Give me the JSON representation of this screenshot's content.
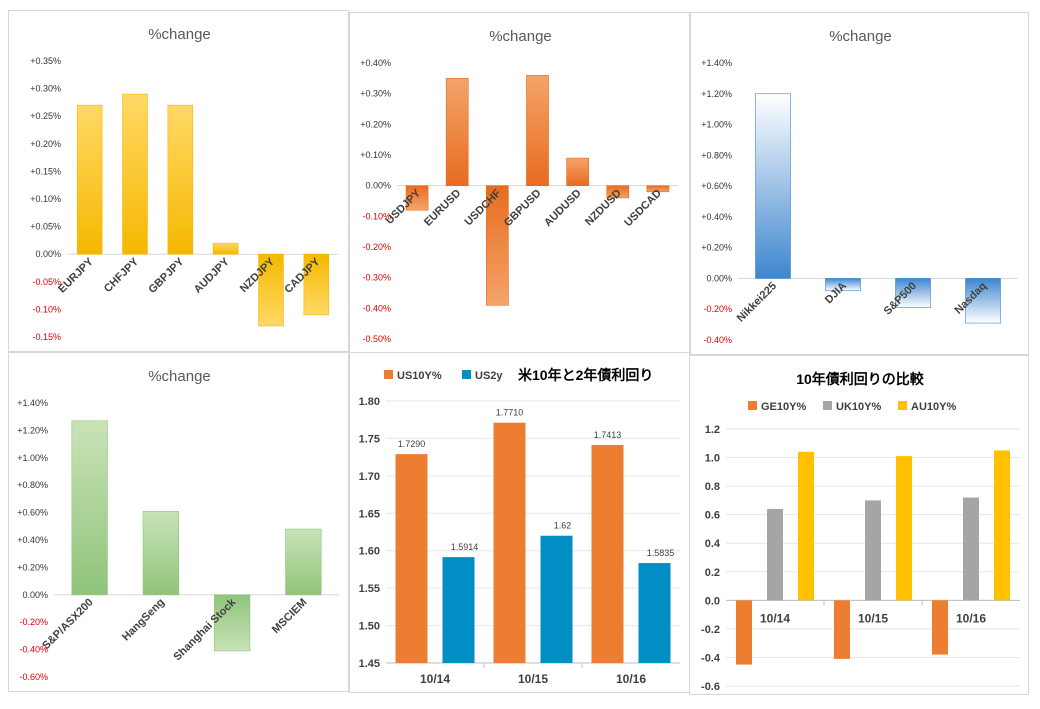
{
  "chart_data": [
    {
      "id": "p1",
      "type": "bar",
      "title": "%change",
      "categories": [
        "EURJPY",
        "CHFJPY",
        "GBPJPY",
        "AUDJPY",
        "NZDJPY",
        "CADJPY"
      ],
      "values": [
        0.27,
        0.29,
        0.27,
        0.02,
        -0.13,
        -0.11
      ],
      "ylim": [
        -0.15,
        0.35
      ],
      "yticks": [
        0.35,
        0.3,
        0.25,
        0.2,
        0.15,
        0.1,
        0.05,
        0.0,
        -0.05,
        -0.1,
        -0.15
      ],
      "ytick_labels": [
        "+0.35%",
        "+0.30%",
        "+0.25%",
        "+0.20%",
        "+0.15%",
        "+0.10%",
        "+0.05%",
        "0.00%",
        "-0.05%",
        "-0.10%",
        "-0.15%"
      ],
      "colors": {
        "bar_top": "#ffd966",
        "bar_bottom": "#f5b800",
        "negative_label": "#e00000",
        "label": "#333333"
      }
    },
    {
      "id": "p2",
      "type": "bar",
      "title": "%change",
      "categories": [
        "USDJPY",
        "EURUSD",
        "USDCHF",
        "GBPUSD",
        "AUDUSD",
        "NZDUSD",
        "USDCAD"
      ],
      "values": [
        -0.08,
        0.35,
        -0.39,
        0.36,
        0.09,
        -0.04,
        -0.02
      ],
      "ylim": [
        -0.5,
        0.4
      ],
      "yticks": [
        0.4,
        0.3,
        0.2,
        0.1,
        0.0,
        -0.1,
        -0.2,
        -0.3,
        -0.4,
        -0.5
      ],
      "ytick_labels": [
        "+0.40%",
        "+0.30%",
        "+0.20%",
        "+0.10%",
        "0.00%",
        "-0.10%",
        "-0.20%",
        "-0.30%",
        "-0.40%",
        "-0.50%"
      ],
      "colors": {
        "bar_top": "#f4a46a",
        "bar_bottom": "#e76c1f",
        "negative_label": "#e00000",
        "label": "#333333"
      }
    },
    {
      "id": "p3",
      "type": "bar",
      "title": "%change",
      "categories": [
        "Nikkei225",
        "DJIA",
        "S&P500",
        "Nasdaq"
      ],
      "values": [
        1.2,
        -0.08,
        -0.19,
        -0.29
      ],
      "ylim": [
        -0.4,
        1.4
      ],
      "yticks": [
        1.4,
        1.2,
        1.0,
        0.8,
        0.6,
        0.4,
        0.2,
        0.0,
        -0.2,
        -0.4
      ],
      "ytick_labels": [
        "+1.40%",
        "+1.20%",
        "+1.00%",
        "+0.80%",
        "+0.60%",
        "+0.40%",
        "+0.20%",
        "0.00%",
        "-0.20%",
        "-0.40%"
      ],
      "colors": {
        "bar_top": "#ffffff",
        "bar_bottom": "#3d86cf",
        "negative_label": "#e00000",
        "label": "#333333"
      }
    },
    {
      "id": "p4",
      "type": "bar",
      "title": "%change",
      "categories": [
        "S&P/ASX200",
        "HangSeng",
        "Shanghai Stock",
        "MSCIEM"
      ],
      "values": [
        1.27,
        0.61,
        -0.41,
        0.48
      ],
      "ylim": [
        -0.6,
        1.4
      ],
      "yticks": [
        1.4,
        1.2,
        1.0,
        0.8,
        0.6,
        0.4,
        0.2,
        0.0,
        -0.2,
        -0.4,
        -0.6
      ],
      "ytick_labels": [
        "+1.40%",
        "+1.20%",
        "+1.00%",
        "+0.80%",
        "+0.60%",
        "+0.40%",
        "+0.20%",
        "0.00%",
        "-0.20%",
        "-0.40%",
        "-0.60%"
      ],
      "colors": {
        "bar_top": "#c9e3b7",
        "bar_bottom": "#8fc47a",
        "negative_label": "#e00000",
        "label": "#333333"
      }
    },
    {
      "id": "p5",
      "type": "bar",
      "title": "米10年と2年債利回り",
      "categories": [
        "10/14",
        "10/15",
        "10/16"
      ],
      "series": [
        {
          "name": "US10Y%",
          "values": [
            1.729,
            1.771,
            1.7413
          ],
          "labels": [
            "1.7290",
            "1.7710",
            "1.7413"
          ],
          "color": "#ed7d31"
        },
        {
          "name": "US2y",
          "values": [
            1.5914,
            1.62,
            1.5835
          ],
          "labels": [
            "1.5914",
            "1.62",
            "1.5835"
          ],
          "color": "#008ec4"
        }
      ],
      "ylim": [
        1.45,
        1.8
      ],
      "yticks": [
        1.8,
        1.75,
        1.7,
        1.65,
        1.6,
        1.55,
        1.5,
        1.45
      ],
      "ytick_labels": [
        "1.80",
        "1.75",
        "1.70",
        "1.65",
        "1.60",
        "1.55",
        "1.50",
        "1.45"
      ],
      "legend": "top-left"
    },
    {
      "id": "p6",
      "type": "bar",
      "title": "10年債利回りの比較",
      "categories": [
        "10/14",
        "10/15",
        "10/16"
      ],
      "series": [
        {
          "name": "GE10Y%",
          "values": [
            -0.45,
            -0.41,
            -0.38
          ],
          "color": "#ed7d31"
        },
        {
          "name": "UK10Y%",
          "values": [
            0.64,
            0.7,
            0.72
          ],
          "color": "#a5a5a5"
        },
        {
          "name": "AU10Y%",
          "values": [
            1.04,
            1.01,
            1.05
          ],
          "color": "#ffc000"
        }
      ],
      "ylim": [
        -0.6,
        1.2
      ],
      "yticks": [
        1.2,
        1.0,
        0.8,
        0.6,
        0.4,
        0.2,
        0.0,
        -0.2,
        -0.4,
        -0.6
      ],
      "ytick_labels": [
        "1.2",
        "1.0",
        "0.8",
        "0.6",
        "0.4",
        "0.2",
        "0.0",
        "-0.2",
        "-0.4",
        "-0.6"
      ],
      "legend": "top"
    }
  ]
}
